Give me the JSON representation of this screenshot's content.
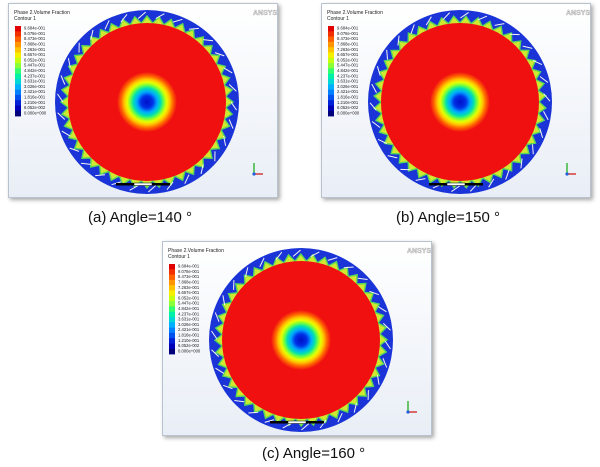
{
  "legend": {
    "title_line1": "Phase 2.Volume Fraction",
    "title_line2": "Contour 1",
    "values": [
      "9.684e-001",
      "9.078e-001",
      "8.473e-001",
      "7.868e-001",
      "7.263e-001",
      "6.657e-001",
      "6.052e-001",
      "5.447e-001",
      "4.842e-001",
      "4.237e-001",
      "3.631e-001",
      "3.026e-001",
      "2.421e-001",
      "1.816e-001",
      "1.210e-001",
      "6.052e-002",
      "0.000e+000"
    ],
    "colors": [
      "#e00000",
      "#f22f00",
      "#ff6000",
      "#ff9500",
      "#ffc400",
      "#f4f000",
      "#c4ff10",
      "#88ff38",
      "#30ff70",
      "#00f0a8",
      "#00d8d8",
      "#00b0ff",
      "#0080ff",
      "#0050f0",
      "#0020d8",
      "#0000b8",
      "#00007a"
    ]
  },
  "brand": "ANSYS",
  "colors": {
    "annulus_wall": "#1a34d8",
    "core_red": "#f01010",
    "arrow": "#f5f5f5"
  },
  "panels": [
    {
      "id": "a",
      "caption": "(a)  Angle=140 °"
    },
    {
      "id": "b",
      "caption": "(b)  Angle=150 °"
    },
    {
      "id": "c",
      "caption": "(c)  Angle=160 °"
    }
  ]
}
